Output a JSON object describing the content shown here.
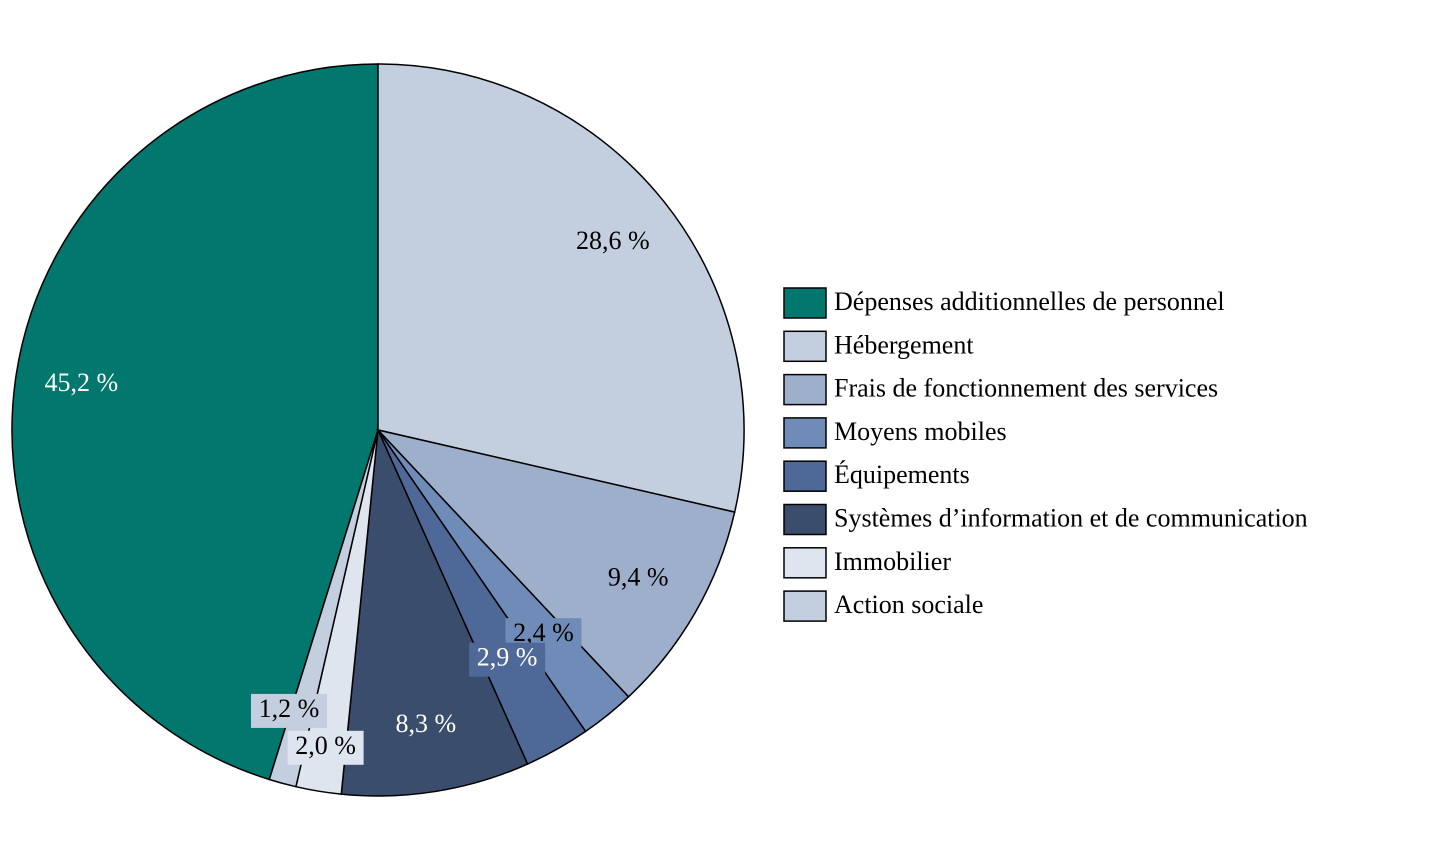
{
  "chart_data": {
    "type": "pie",
    "categories": [
      "Dépenses additionnelles de personnel",
      "Hébergement",
      "Frais de fonctionnement des services",
      "Moyens mobiles",
      "Équipements",
      "Systèmes d’information et de communication",
      "Immobilier",
      "Action sociale"
    ],
    "values": [
      45.2,
      28.6,
      9.4,
      2.4,
      2.9,
      8.3,
      2.0,
      1.2
    ],
    "value_labels": [
      "45,2 %",
      "28,6 %",
      "9,4 %",
      "2,4 %",
      "2,9 %",
      "8,3 %",
      "2,0 %",
      "1,2 %"
    ],
    "colors": [
      "#02776e",
      "#c3cedf",
      "#9dafcb",
      "#6f8bb7",
      "#4e6898",
      "#3a4d6c",
      "#dfe5ef",
      "#c3cedf"
    ],
    "legend": "right"
  }
}
